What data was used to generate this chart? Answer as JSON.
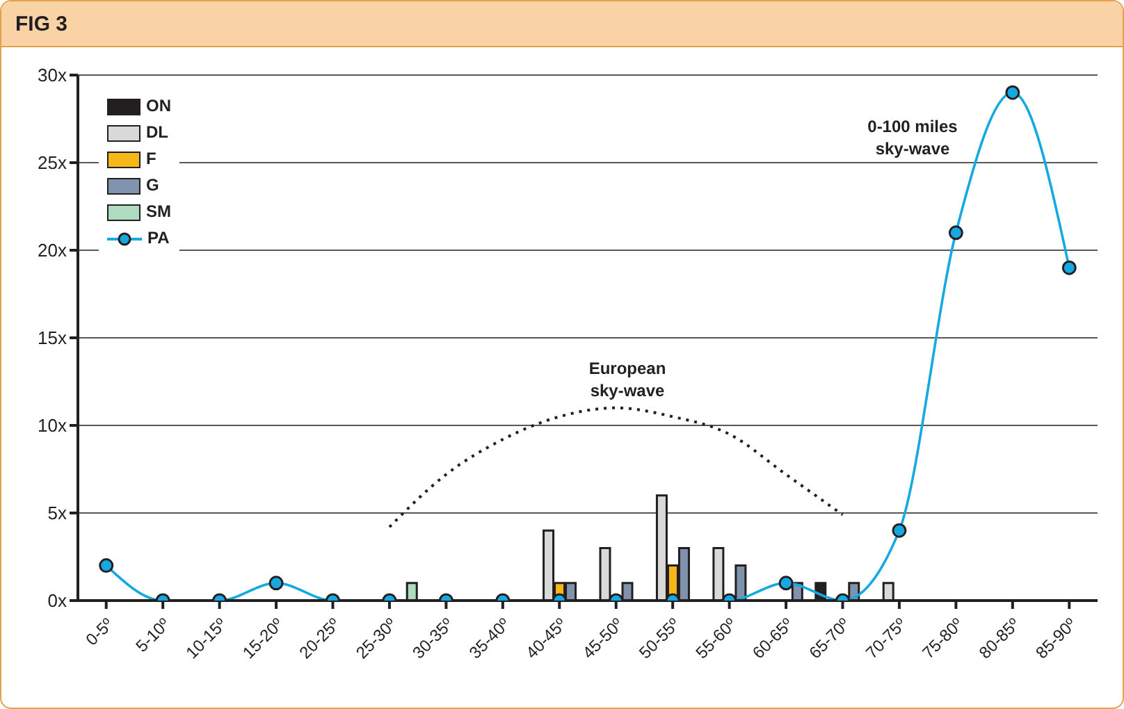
{
  "chart_data": {
    "type": "bar",
    "title": "FIG 3",
    "categories": [
      "0-5º",
      "5-10º",
      "10-15º",
      "15-20º",
      "20-25º",
      "25-30º",
      "30-35º",
      "35-40º",
      "40-45º",
      "45-50º",
      "50-55º",
      "55-60º",
      "60-65º",
      "65-70º",
      "70-75º",
      "75-80º",
      "80-85º",
      "85-90º"
    ],
    "series": [
      {
        "name": "ON",
        "color": "#231f20",
        "values": [
          null,
          null,
          null,
          null,
          null,
          null,
          null,
          null,
          null,
          null,
          null,
          null,
          null,
          1,
          null,
          null,
          null,
          null
        ]
      },
      {
        "name": "DL",
        "color": "#d9d9d9",
        "values": [
          null,
          null,
          null,
          null,
          null,
          null,
          null,
          null,
          4,
          3,
          6,
          3,
          null,
          null,
          1,
          null,
          null,
          null
        ]
      },
      {
        "name": "F",
        "color": "#f6b818",
        "values": [
          null,
          null,
          null,
          null,
          null,
          null,
          null,
          null,
          1,
          null,
          2,
          null,
          null,
          null,
          null,
          null,
          null,
          null
        ]
      },
      {
        "name": "G",
        "color": "#7f93ad",
        "values": [
          null,
          null,
          null,
          null,
          null,
          null,
          null,
          null,
          1,
          1,
          3,
          2,
          1,
          1,
          null,
          null,
          null,
          null
        ]
      },
      {
        "name": "SM",
        "color": "#aedcc0",
        "values": [
          null,
          null,
          null,
          null,
          null,
          1,
          null,
          null,
          null,
          null,
          null,
          null,
          null,
          null,
          null,
          null,
          null,
          null
        ]
      },
      {
        "name": "PA",
        "type": "line",
        "color": "#16a9e1",
        "marker": "circle",
        "values": [
          2,
          0,
          0,
          1,
          0,
          0,
          0,
          0,
          0,
          0,
          0,
          0,
          1,
          0,
          4,
          21,
          29,
          19
        ]
      },
      {
        "type": "line",
        "color": "#231f20",
        "line_style": "dotted",
        "marker": "none",
        "values": [
          null,
          null,
          null,
          null,
          null,
          4.2,
          7.2,
          9.2,
          10.5,
          11,
          10.5,
          9.5,
          7.2,
          4.9,
          null,
          null,
          null,
          null
        ]
      }
    ],
    "ylim": [
      0,
      30
    ],
    "yticks": [
      {
        "value": 0,
        "label": "0x"
      },
      {
        "value": 5,
        "label": "5x"
      },
      {
        "value": 10,
        "label": "10x"
      },
      {
        "value": 15,
        "label": "15x"
      },
      {
        "value": 20,
        "label": "20x"
      },
      {
        "value": 25,
        "label": "25x"
      },
      {
        "value": 30,
        "label": "30x"
      }
    ],
    "grid": "y",
    "legend": "top left",
    "annotations": [
      "European sky-wave",
      "0-100 miles sky-wave"
    ]
  }
}
